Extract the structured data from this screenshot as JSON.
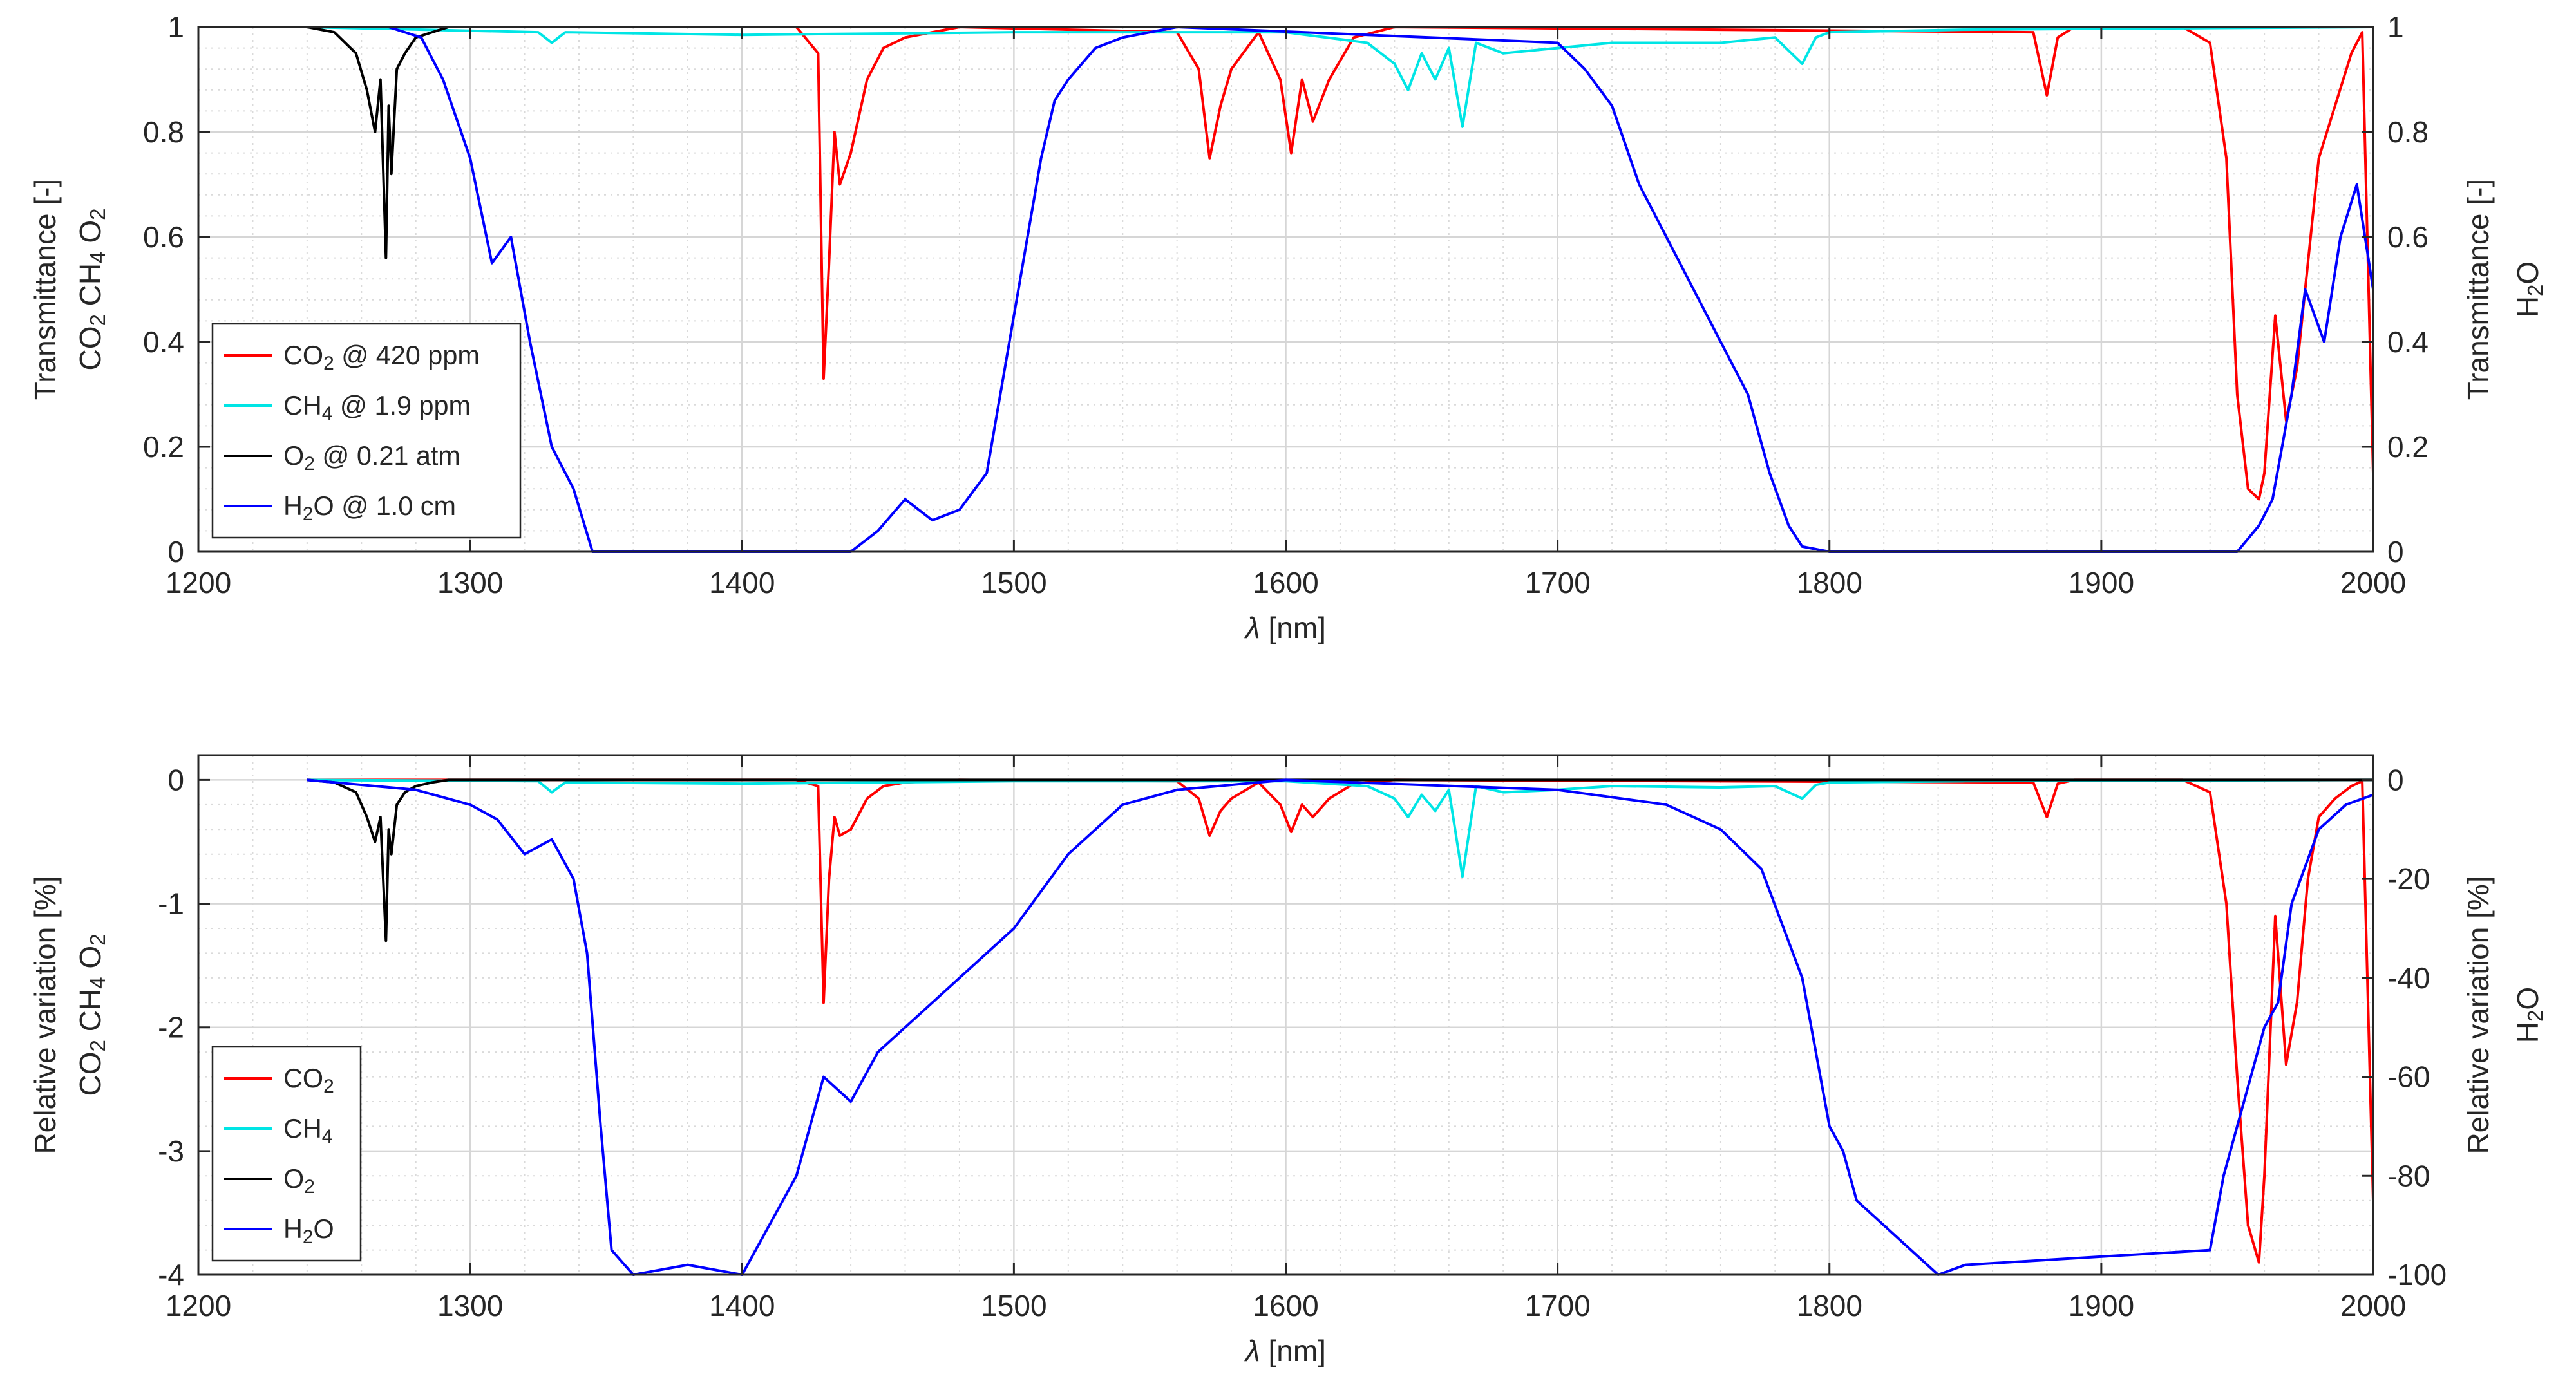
{
  "chart_data": [
    {
      "type": "line",
      "id": "top",
      "xlabel_var": "λ",
      "xlabel_unit": " [nm]",
      "xlim": [
        1200,
        2000
      ],
      "xticks": [
        1200,
        1300,
        1400,
        1500,
        1600,
        1700,
        1800,
        1900,
        2000
      ],
      "ylabel_left": [
        "Transmittance [-]",
        "CO2 CH4 O2"
      ],
      "ylabel_right": [
        "Transmittance [-]",
        "H2O"
      ],
      "ylim_left": [
        0,
        1
      ],
      "ylim_right": [
        0,
        1
      ],
      "yticks_left": [
        "0",
        "0.2",
        "0.4",
        "0.6",
        "0.8",
        "1"
      ],
      "yticks_left_values": [
        0,
        0.2,
        0.4,
        0.6,
        0.8,
        1
      ],
      "yticks_right": [
        "0",
        "0.2",
        "0.4",
        "0.6",
        "0.8",
        "1"
      ],
      "yticks_right_values": [
        0,
        0.2,
        0.4,
        0.6,
        0.8,
        1
      ],
      "legend_location": "lower-left",
      "legend": [
        {
          "species": "CO",
          "sub": "2",
          "rest": " @ 420 ppm",
          "color": "#ff0000"
        },
        {
          "species": "CH",
          "sub": "4",
          "rest": " @ 1.9 ppm",
          "color": "#00e5e5"
        },
        {
          "species": "O",
          "sub": "2",
          "rest": " @ 0.21 atm",
          "color": "#000000"
        },
        {
          "species": "H",
          "sub": "2",
          "rest": "O @ 1.0 cm",
          "color": "#0000ff"
        }
      ],
      "series": [
        {
          "name": "CO2 @ 420 ppm",
          "axis": "left",
          "color": "#ff0000",
          "x": [
            1240,
            1420,
            1428,
            1430,
            1432,
            1434,
            1436,
            1440,
            1446,
            1452,
            1460,
            1470,
            1480,
            1560,
            1568,
            1572,
            1576,
            1580,
            1590,
            1598,
            1602,
            1606,
            1610,
            1616,
            1625,
            1640,
            1875,
            1880,
            1884,
            1890,
            1930,
            1940,
            1946,
            1950,
            1954,
            1958,
            1960,
            1964,
            1968,
            1972,
            1976,
            1980,
            1986,
            1992,
            1996,
            2000
          ],
          "y": [
            1,
            1,
            0.95,
            0.33,
            0.55,
            0.8,
            0.7,
            0.76,
            0.9,
            0.96,
            0.98,
            0.99,
            1,
            0.99,
            0.92,
            0.75,
            0.85,
            0.92,
            0.99,
            0.9,
            0.76,
            0.9,
            0.82,
            0.9,
            0.98,
            1,
            0.99,
            0.87,
            0.98,
            1,
            1,
            0.97,
            0.75,
            0.3,
            0.12,
            0.1,
            0.15,
            0.45,
            0.25,
            0.35,
            0.55,
            0.75,
            0.85,
            0.95,
            0.99,
            0.15
          ]
        },
        {
          "name": "CH4 @ 1.9 ppm",
          "axis": "left",
          "color": "#00e5e5",
          "x": [
            1240,
            1325,
            1330,
            1335,
            1400,
            1500,
            1600,
            1630,
            1640,
            1645,
            1650,
            1655,
            1660,
            1665,
            1670,
            1680,
            1700,
            1720,
            1760,
            1780,
            1790,
            1795,
            1800,
            1850,
            2000
          ],
          "y": [
            1,
            0.99,
            0.97,
            0.99,
            0.985,
            0.99,
            0.99,
            0.97,
            0.93,
            0.88,
            0.95,
            0.9,
            0.96,
            0.81,
            0.97,
            0.95,
            0.96,
            0.97,
            0.97,
            0.98,
            0.93,
            0.98,
            0.99,
            0.995,
            1
          ]
        },
        {
          "name": "O2 @ 0.21 atm",
          "axis": "left",
          "color": "#000000",
          "x": [
            1240,
            1250,
            1258,
            1262,
            1265,
            1267,
            1269,
            1270,
            1271,
            1273,
            1276,
            1280,
            1286,
            1292,
            2000
          ],
          "y": [
            1,
            0.99,
            0.95,
            0.88,
            0.8,
            0.9,
            0.56,
            0.85,
            0.72,
            0.92,
            0.95,
            0.98,
            0.99,
            1,
            1
          ]
        },
        {
          "name": "H2O @ 1.0 cm",
          "axis": "right",
          "color": "#0000ff",
          "x": [
            1240,
            1270,
            1282,
            1290,
            1300,
            1308,
            1315,
            1322,
            1330,
            1338,
            1345,
            1440,
            1450,
            1460,
            1470,
            1480,
            1490,
            1495,
            1500,
            1505,
            1510,
            1515,
            1520,
            1530,
            1540,
            1560,
            1700,
            1710,
            1720,
            1730,
            1740,
            1750,
            1760,
            1770,
            1778,
            1785,
            1790,
            1800,
            1950,
            1958,
            1963,
            1970,
            1975,
            1982,
            1988,
            1994,
            2000
          ],
          "y": [
            1,
            1,
            0.98,
            0.9,
            0.75,
            0.55,
            0.6,
            0.4,
            0.2,
            0.12,
            0,
            0,
            0.04,
            0.1,
            0.06,
            0.08,
            0.15,
            0.3,
            0.45,
            0.6,
            0.75,
            0.86,
            0.9,
            0.96,
            0.98,
            1,
            0.97,
            0.92,
            0.85,
            0.7,
            0.6,
            0.5,
            0.4,
            0.3,
            0.15,
            0.05,
            0.01,
            0,
            0,
            0.05,
            0.1,
            0.3,
            0.5,
            0.4,
            0.6,
            0.7,
            0.5
          ]
        }
      ]
    },
    {
      "type": "line",
      "id": "bottom",
      "xlabel_var": "λ",
      "xlabel_unit": " [nm]",
      "xlim": [
        1200,
        2000
      ],
      "xticks": [
        1200,
        1300,
        1400,
        1500,
        1600,
        1700,
        1800,
        1900,
        2000
      ],
      "ylabel_left": [
        "Relative variation [%]",
        "CO2 CH4 O2"
      ],
      "ylabel_right": [
        "Relative variation [%]",
        "H2O"
      ],
      "ylim_left": [
        -4,
        0.2
      ],
      "ylim_right": [
        -100,
        5
      ],
      "yticks_left": [
        "-4",
        "-3",
        "-2",
        "-1",
        "0"
      ],
      "yticks_left_values": [
        -4,
        -3,
        -2,
        -1,
        0
      ],
      "yticks_right": [
        "-100",
        "-80",
        "-60",
        "-40",
        "-20",
        "0"
      ],
      "yticks_right_values": [
        -100,
        -80,
        -60,
        -40,
        -20,
        0
      ],
      "legend_location": "lower-left",
      "legend": [
        {
          "species": "CO",
          "sub": "2",
          "rest": "",
          "color": "#ff0000"
        },
        {
          "species": "CH",
          "sub": "4",
          "rest": "",
          "color": "#00e5e5"
        },
        {
          "species": "O",
          "sub": "2",
          "rest": "",
          "color": "#000000"
        },
        {
          "species": "H",
          "sub": "2",
          "rest": "O",
          "color": "#0000ff"
        }
      ],
      "series": [
        {
          "name": "CO2",
          "axis": "left",
          "color": "#ff0000",
          "x": [
            1240,
            1420,
            1428,
            1430,
            1432,
            1434,
            1436,
            1440,
            1446,
            1452,
            1460,
            1470,
            1480,
            1560,
            1568,
            1572,
            1576,
            1580,
            1590,
            1598,
            1602,
            1606,
            1610,
            1616,
            1625,
            1640,
            1875,
            1880,
            1884,
            1890,
            1930,
            1940,
            1946,
            1950,
            1954,
            1958,
            1960,
            1964,
            1968,
            1972,
            1976,
            1980,
            1986,
            1992,
            1996,
            2000
          ],
          "y": [
            0,
            0,
            -0.05,
            -1.8,
            -0.8,
            -0.3,
            -0.45,
            -0.4,
            -0.15,
            -0.05,
            -0.02,
            -0.01,
            0,
            -0.01,
            -0.15,
            -0.45,
            -0.25,
            -0.15,
            -0.02,
            -0.2,
            -0.42,
            -0.2,
            -0.3,
            -0.15,
            -0.03,
            0,
            -0.02,
            -0.3,
            -0.03,
            0,
            0,
            -0.1,
            -1,
            -2.4,
            -3.6,
            -3.9,
            -3.2,
            -1.1,
            -2.3,
            -1.8,
            -0.8,
            -0.3,
            -0.15,
            -0.05,
            -0.01,
            -3.4
          ]
        },
        {
          "name": "CH4",
          "axis": "left",
          "color": "#00e5e5",
          "x": [
            1240,
            1325,
            1330,
            1335,
            1400,
            1500,
            1600,
            1630,
            1640,
            1645,
            1650,
            1655,
            1660,
            1665,
            1670,
            1680,
            1700,
            1720,
            1760,
            1780,
            1790,
            1795,
            1800,
            1850,
            2000
          ],
          "y": [
            0,
            -0.01,
            -0.1,
            -0.02,
            -0.03,
            -0.01,
            -0.01,
            -0.05,
            -0.15,
            -0.3,
            -0.12,
            -0.25,
            -0.08,
            -0.78,
            -0.05,
            -0.1,
            -0.08,
            -0.05,
            -0.06,
            -0.05,
            -0.15,
            -0.04,
            -0.02,
            -0.01,
            0
          ]
        },
        {
          "name": "O2",
          "axis": "left",
          "color": "#000000",
          "x": [
            1240,
            1250,
            1258,
            1262,
            1265,
            1267,
            1269,
            1270,
            1271,
            1273,
            1276,
            1280,
            1286,
            1292,
            2000
          ],
          "y": [
            0,
            -0.02,
            -0.1,
            -0.3,
            -0.5,
            -0.3,
            -1.3,
            -0.4,
            -0.6,
            -0.2,
            -0.1,
            -0.05,
            -0.02,
            0,
            0
          ]
        },
        {
          "name": "H2O",
          "axis": "right",
          "color": "#0000ff",
          "x": [
            1240,
            1280,
            1300,
            1310,
            1320,
            1330,
            1338,
            1343,
            1348,
            1352,
            1360,
            1380,
            1400,
            1410,
            1420,
            1430,
            1440,
            1450,
            1460,
            1480,
            1500,
            1520,
            1540,
            1560,
            1600,
            1700,
            1740,
            1760,
            1775,
            1790,
            1800,
            1805,
            1810,
            1820,
            1830,
            1840,
            1850,
            1940,
            1945,
            1950,
            1955,
            1960,
            1965,
            1970,
            1980,
            1990,
            2000
          ],
          "y": [
            0,
            -2,
            -5,
            -8,
            -15,
            -12,
            -20,
            -35,
            -70,
            -95,
            -100,
            -98,
            -100,
            -90,
            -80,
            -60,
            -65,
            -55,
            -50,
            -40,
            -30,
            -15,
            -5,
            -2,
            0,
            -2,
            -5,
            -10,
            -18,
            -40,
            -70,
            -75,
            -85,
            -90,
            -95,
            -100,
            -98,
            -95,
            -80,
            -70,
            -60,
            -50,
            -45,
            -25,
            -10,
            -5,
            -3
          ]
        }
      ]
    }
  ]
}
